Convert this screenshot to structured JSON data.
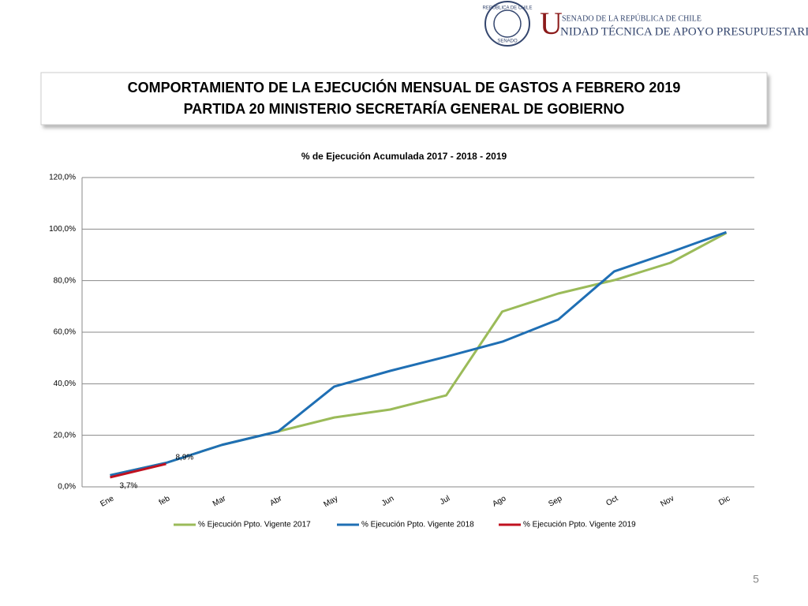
{
  "header": {
    "seal_top": "REPÚBLICA DE CHILE",
    "seal_bottom": "SENADO",
    "initial": "U",
    "line1": "SENADO DE LA REPÚBLICA DE CHILE",
    "line2": "NIDAD TÉCNICA DE APOYO PRESUPUESTARIO"
  },
  "title_box": {
    "line1": "COMPORTAMIENTO DE LA EJECUCIÓN MENSUAL DE GASTOS A FEBRERO 2019",
    "line2": "PARTIDA 20 MINISTERIO SECRETARÍA GENERAL DE GOBIERNO"
  },
  "chart_data": {
    "type": "line",
    "title": "% de Ejecución Acumulada 2017 - 2018 - 2019",
    "categories": [
      "Ene",
      "feb",
      "Mar",
      "Abr",
      "May",
      "Jun",
      "Jul",
      "Ago",
      "Sep",
      "Oct",
      "Nov",
      "Dic"
    ],
    "series": [
      {
        "name": "% Ejecución Ppto. Vigente 2017",
        "color": "#9bbb59",
        "values": [
          4.5,
          9.3,
          16.3,
          21.5,
          26.9,
          30.0,
          35.5,
          68.0,
          75.0,
          80.2,
          86.9,
          98.5
        ]
      },
      {
        "name": "% Ejecución Ppto. Vigente 2018",
        "color": "#1f6fb4",
        "values": [
          4.5,
          9.3,
          16.3,
          21.5,
          38.9,
          45.0,
          50.5,
          56.3,
          64.9,
          83.6,
          91.0,
          98.8
        ]
      },
      {
        "name": "% Ejecución Ppto. Vigente 2019",
        "color": "#c0111f",
        "values": [
          3.7,
          8.9,
          null,
          null,
          null,
          null,
          null,
          null,
          null,
          null,
          null,
          null
        ],
        "value_labels": [
          "3,7%",
          "8,9%",
          null,
          null,
          null,
          null,
          null,
          null,
          null,
          null,
          null,
          null
        ]
      }
    ],
    "ylim": [
      0,
      120
    ],
    "yticks": [
      {
        "value": 0,
        "label": "0,0%"
      },
      {
        "value": 20,
        "label": "20,0%"
      },
      {
        "value": 40,
        "label": "40,0%"
      },
      {
        "value": 60,
        "label": "60,0%"
      },
      {
        "value": 80,
        "label": "80,0%"
      },
      {
        "value": 100,
        "label": "100,0%"
      },
      {
        "value": 120,
        "label": "120,0%"
      }
    ],
    "grid": true,
    "legend": "bottom"
  },
  "page_number": "5"
}
